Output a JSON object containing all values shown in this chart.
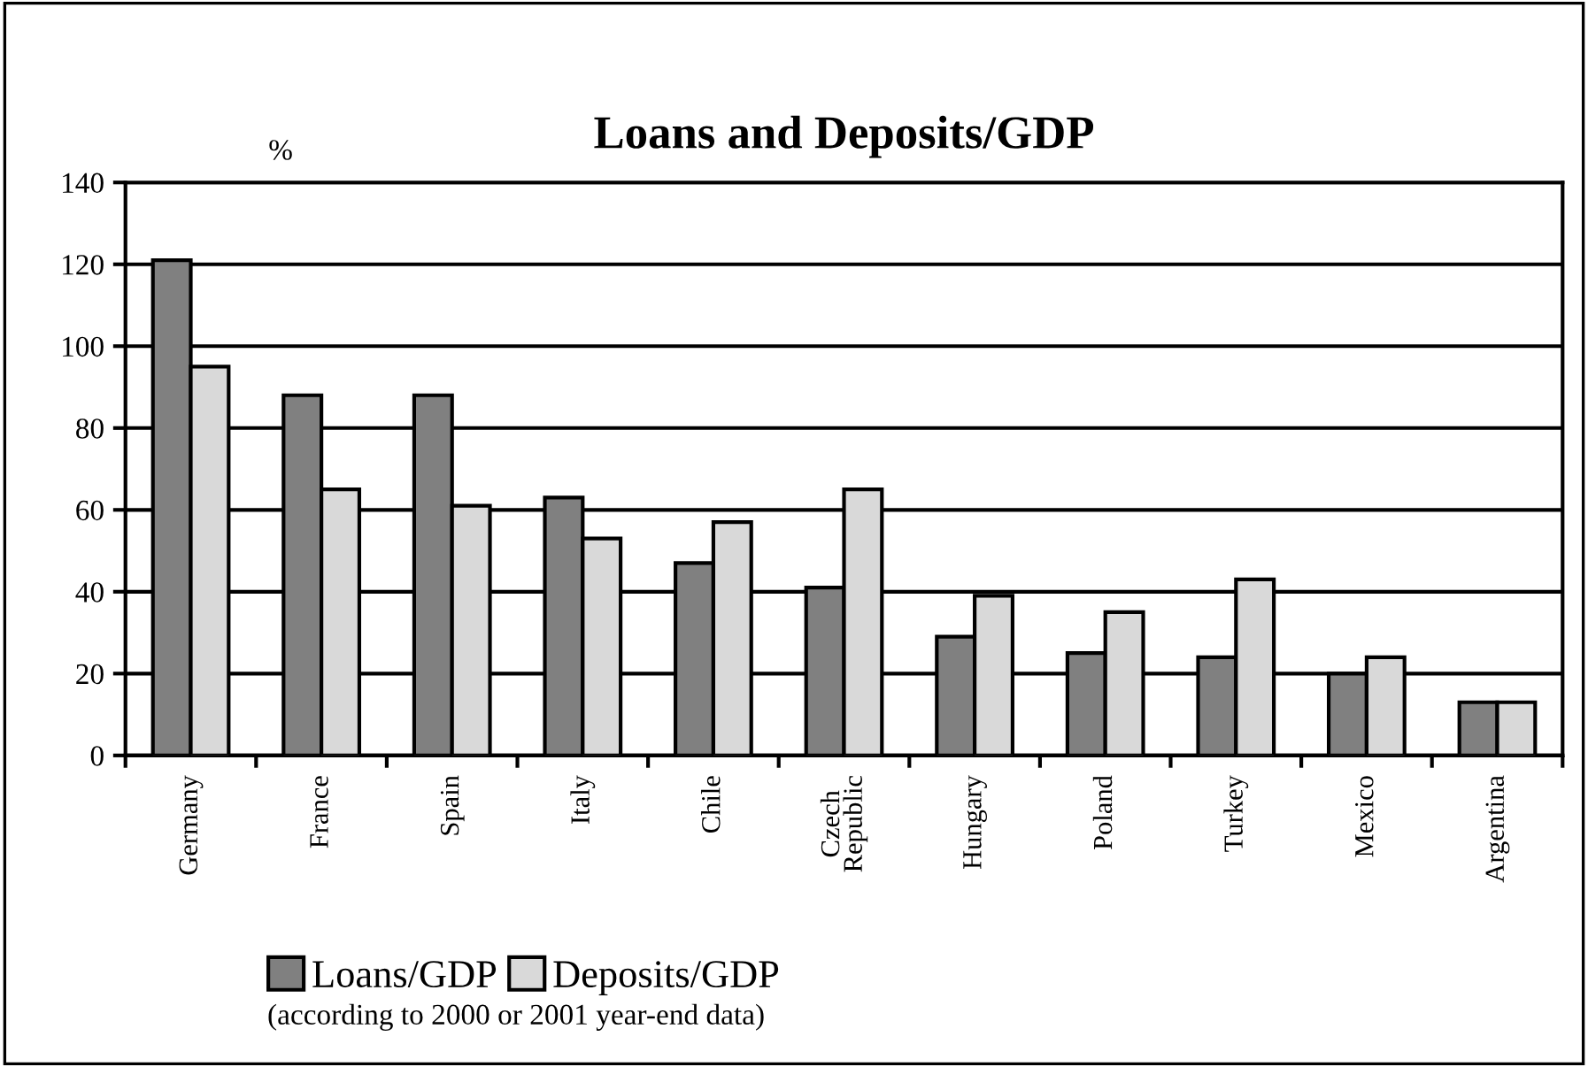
{
  "chart_data": {
    "type": "bar",
    "title": "Loans and Deposits/GDP",
    "ylabel": "%",
    "categories": [
      "Germany",
      "France",
      "Spain",
      "Italy",
      "Chile",
      "Czech\nRepublic",
      "Hungary",
      "Poland",
      "Turkey",
      "Mexico",
      "Argentina"
    ],
    "series": [
      {
        "name": "Loans/GDP",
        "color": "#808080",
        "values": [
          121,
          88,
          88,
          63,
          47,
          41,
          29,
          25,
          24,
          20,
          13
        ]
      },
      {
        "name": "Deposits/GDP",
        "color": "#d9d9d9",
        "values": [
          95,
          65,
          61,
          53,
          57,
          65,
          39,
          35,
          43,
          24,
          13
        ]
      }
    ],
    "ylim": [
      0,
      140
    ],
    "yticks": [
      0,
      20,
      40,
      60,
      80,
      100,
      120,
      140
    ],
    "grid": "y",
    "legend": "bottom",
    "annotations": [
      "(according to 2000 or 2001 year-end data)"
    ]
  }
}
